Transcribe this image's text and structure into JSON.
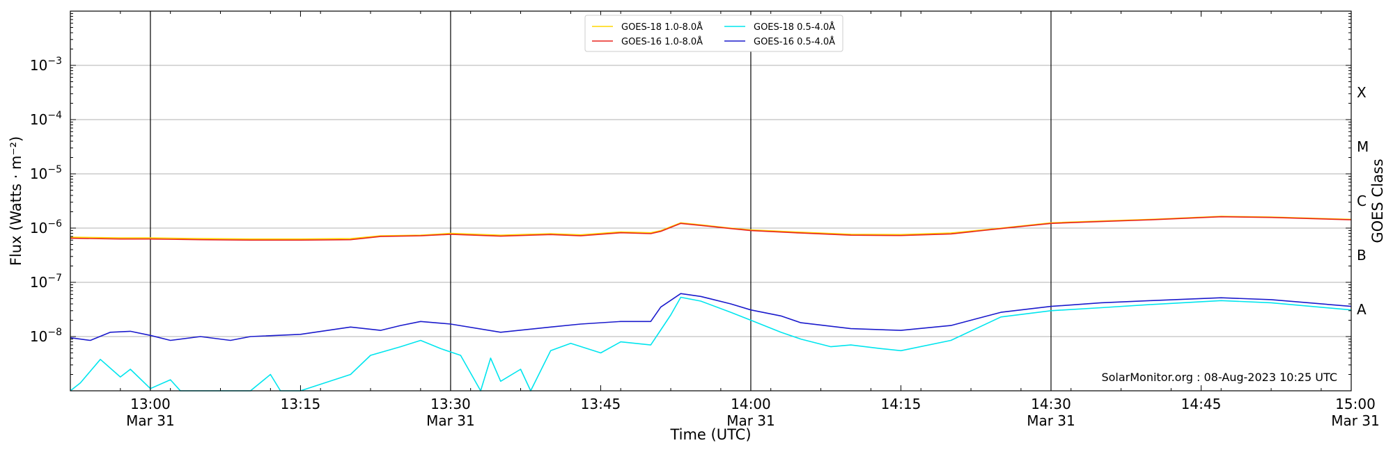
{
  "chart_data": {
    "type": "line",
    "title": "",
    "xlabel": "Time (UTC)",
    "ylabel": "Flux (Watts · m⁻²)",
    "right_ylabel": "GOES Class",
    "yscale": "log",
    "ylim": [
      1e-09,
      0.01
    ],
    "xlim": [
      "12:52",
      "15:00"
    ],
    "x_ticks": [
      {
        "time": "13:00",
        "label": "13:00",
        "sublabel": "Mar 31"
      },
      {
        "time": "13:15",
        "label": "13:15",
        "sublabel": ""
      },
      {
        "time": "13:30",
        "label": "13:30",
        "sublabel": "Mar 31"
      },
      {
        "time": "13:45",
        "label": "13:45",
        "sublabel": ""
      },
      {
        "time": "14:00",
        "label": "14:00",
        "sublabel": "Mar 31"
      },
      {
        "time": "14:15",
        "label": "14:15",
        "sublabel": ""
      },
      {
        "time": "14:30",
        "label": "14:30",
        "sublabel": "Mar 31"
      },
      {
        "time": "14:45",
        "label": "14:45",
        "sublabel": ""
      },
      {
        "time": "15:00",
        "label": "15:00",
        "sublabel": "Mar 31"
      }
    ],
    "y_ticks": [
      {
        "value": 1e-08,
        "mantissa": "10",
        "exponent": "−8"
      },
      {
        "value": 1e-07,
        "mantissa": "10",
        "exponent": "−7"
      },
      {
        "value": 1e-06,
        "mantissa": "10",
        "exponent": "−6"
      },
      {
        "value": 1e-05,
        "mantissa": "10",
        "exponent": "−5"
      },
      {
        "value": 0.0001,
        "mantissa": "10",
        "exponent": "−4"
      },
      {
        "value": 0.001,
        "mantissa": "10",
        "exponent": "−3"
      }
    ],
    "goes_classes": [
      {
        "label": "A",
        "value": 3.16e-08
      },
      {
        "label": "B",
        "value": 3.16e-07
      },
      {
        "label": "C",
        "value": 3.16e-06
      },
      {
        "label": "M",
        "value": 3.16e-05
      },
      {
        "label": "X",
        "value": 0.000316
      }
    ],
    "vertical_lines": [
      "13:00",
      "13:30",
      "14:00",
      "14:30"
    ],
    "grid": "horizontal",
    "legend_position": "top-center",
    "annotation": "SolarMonitor.org : 08-Aug-2023 10:25 UTC",
    "series": [
      {
        "name": "GOES-18 1.0-8.0Å",
        "color": "#ffd700",
        "x": [
          "12:52",
          "12:57",
          "13:00",
          "13:05",
          "13:10",
          "13:15",
          "13:20",
          "13:23",
          "13:27",
          "13:30",
          "13:35",
          "13:40",
          "13:43",
          "13:47",
          "13:50",
          "13:51",
          "13:53",
          "13:55",
          "13:58",
          "14:00",
          "14:05",
          "14:10",
          "14:15",
          "14:20",
          "14:25",
          "14:30",
          "14:35",
          "14:40",
          "14:47",
          "14:52",
          "15:00"
        ],
        "y": [
          6.8e-07,
          6.6e-07,
          6.6e-07,
          6.4e-07,
          6.3e-07,
          6.3e-07,
          6.4e-07,
          7.2e-07,
          7.4e-07,
          8e-07,
          7.4e-07,
          7.9e-07,
          7.5e-07,
          8.5e-07,
          8.2e-07,
          9e-07,
          1.25e-06,
          1.15e-06,
          1e-06,
          9.3e-07,
          8.4e-07,
          7.7e-07,
          7.6e-07,
          8.1e-07,
          1e-06,
          1.25e-06,
          1.35e-06,
          1.45e-06,
          1.65e-06,
          1.6e-06,
          1.45e-06
        ]
      },
      {
        "name": "GOES-16 1.0-8.0Å",
        "color": "#e8231f",
        "x": [
          "12:52",
          "12:57",
          "13:00",
          "13:05",
          "13:10",
          "13:15",
          "13:20",
          "13:23",
          "13:27",
          "13:30",
          "13:35",
          "13:40",
          "13:43",
          "13:47",
          "13:50",
          "13:51",
          "13:53",
          "13:55",
          "13:58",
          "14:00",
          "14:05",
          "14:10",
          "14:15",
          "14:20",
          "14:25",
          "14:30",
          "14:35",
          "14:40",
          "14:47",
          "14:52",
          "15:00"
        ],
        "y": [
          6.5e-07,
          6.3e-07,
          6.3e-07,
          6.1e-07,
          6e-07,
          6e-07,
          6.1e-07,
          7e-07,
          7.2e-07,
          7.7e-07,
          7.1e-07,
          7.6e-07,
          7.2e-07,
          8.2e-07,
          7.9e-07,
          8.7e-07,
          1.22e-06,
          1.12e-06,
          9.8e-07,
          9e-07,
          8.1e-07,
          7.4e-07,
          7.3e-07,
          7.8e-07,
          9.8e-07,
          1.22e-06,
          1.32e-06,
          1.42e-06,
          1.62e-06,
          1.57e-06,
          1.42e-06
        ]
      },
      {
        "name": "GOES-18 0.5-4.0Å",
        "color": "#00e5ee",
        "x": [
          "12:52",
          "12:53",
          "12:55",
          "12:57",
          "12:58",
          "13:00",
          "13:02",
          "13:03",
          "13:05",
          "13:10",
          "13:12",
          "13:13",
          "13:15",
          "13:20",
          "13:22",
          "13:25",
          "13:27",
          "13:29",
          "13:31",
          "13:33",
          "13:34",
          "13:35",
          "13:37",
          "13:38",
          "13:40",
          "13:42",
          "13:45",
          "13:47",
          "13:50",
          "13:52",
          "13:53",
          "13:55",
          "13:58",
          "14:00",
          "14:03",
          "14:05",
          "14:08",
          "14:10",
          "14:13",
          "14:15",
          "14:20",
          "14:25",
          "14:30",
          "14:35",
          "14:40",
          "14:47",
          "14:52",
          "15:00"
        ],
        "y": [
          1e-09,
          1.4e-09,
          3.8e-09,
          1.8e-09,
          2.5e-09,
          1.1e-09,
          1.6e-09,
          1e-09,
          1e-09,
          1e-09,
          2e-09,
          1e-09,
          1e-09,
          2e-09,
          4.5e-09,
          6.5e-09,
          8.5e-09,
          6e-09,
          4.5e-09,
          1e-09,
          4e-09,
          1.5e-09,
          2.5e-09,
          1e-09,
          5.5e-09,
          7.5e-09,
          5e-09,
          8e-09,
          7e-09,
          2.5e-08,
          5.3e-08,
          4.5e-08,
          2.8e-08,
          2e-08,
          1.2e-08,
          9e-09,
          6.5e-09,
          7e-09,
          6e-09,
          5.5e-09,
          8.5e-09,
          2.3e-08,
          3e-08,
          3.4e-08,
          3.9e-08,
          4.6e-08,
          4.2e-08,
          3.1e-08
        ]
      },
      {
        "name": "GOES-16 0.5-4.0Å",
        "color": "#1a1acc",
        "x": [
          "12:52",
          "12:54",
          "12:56",
          "12:58",
          "13:00",
          "13:02",
          "13:05",
          "13:08",
          "13:10",
          "13:15",
          "13:20",
          "13:23",
          "13:25",
          "13:27",
          "13:30",
          "13:35",
          "13:40",
          "13:43",
          "13:47",
          "13:50",
          "13:51",
          "13:53",
          "13:55",
          "13:58",
          "14:00",
          "14:03",
          "14:05",
          "14:10",
          "14:15",
          "14:20",
          "14:25",
          "14:30",
          "14:35",
          "14:40",
          "14:47",
          "14:52",
          "15:00"
        ],
        "y": [
          9.5e-09,
          8.5e-09,
          1.2e-08,
          1.25e-08,
          1.05e-08,
          8.5e-09,
          1e-08,
          8.5e-09,
          1e-08,
          1.1e-08,
          1.5e-08,
          1.3e-08,
          1.6e-08,
          1.9e-08,
          1.7e-08,
          1.2e-08,
          1.5e-08,
          1.7e-08,
          1.9e-08,
          1.9e-08,
          3.5e-08,
          6.2e-08,
          5.5e-08,
          4e-08,
          3.1e-08,
          2.4e-08,
          1.8e-08,
          1.4e-08,
          1.3e-08,
          1.6e-08,
          2.8e-08,
          3.6e-08,
          4.2e-08,
          4.6e-08,
          5.2e-08,
          4.8e-08,
          3.6e-08
        ]
      }
    ]
  }
}
